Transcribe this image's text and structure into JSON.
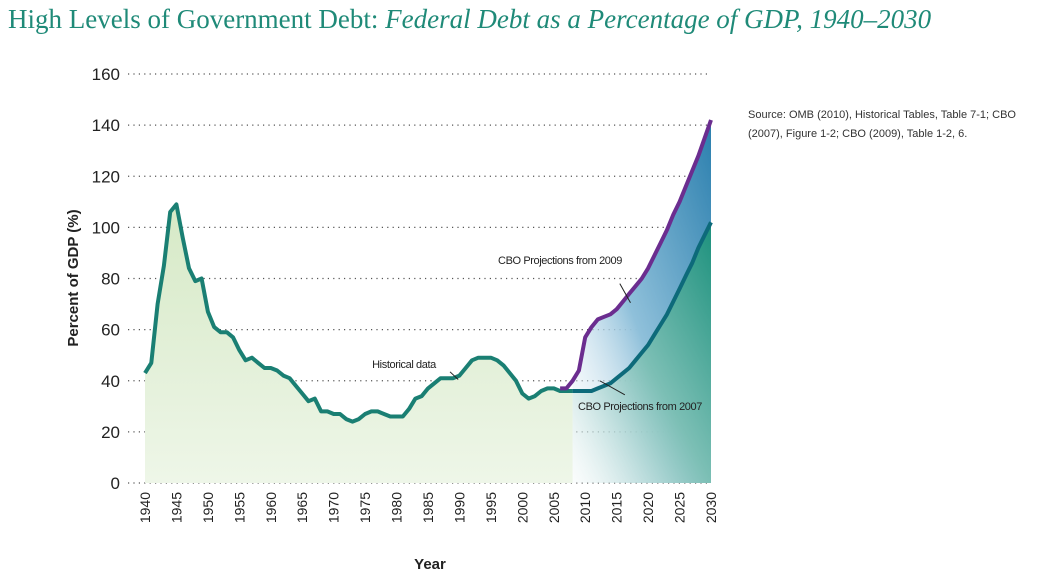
{
  "header": {
    "title_main": "High Levels of Government Debt: ",
    "title_sub": "Federal Debt as a Percentage of GDP, 1940–2030"
  },
  "source_note": "Source: OMB (2010), Historical Tables, Table 7-1; CBO (2007), Figure 1-2; CBO (2009), Table 1-2, 6.",
  "colors": {
    "historical": "#1a7f73",
    "historical_fill": "#e3f0d7",
    "cbo2009": "#6b2d8f",
    "cbo2007": "#0d6a7a",
    "fill_blue": "#3a8fb5",
    "fill_teal": "#2a9a86",
    "grid": "#555555"
  },
  "chart_data": {
    "type": "line",
    "title": "Federal Debt as a Percentage of GDP, 1940–2030",
    "xlabel": "Year",
    "ylabel": "Percent of GDP (%)",
    "xlim": [
      1940,
      2030
    ],
    "ylim": [
      0,
      160
    ],
    "x_ticks": [
      "1940",
      "1945",
      "1950",
      "1955",
      "1960",
      "1965",
      "1970",
      "1975",
      "1980",
      "1985",
      "1990",
      "1995",
      "2000",
      "2005",
      "2010",
      "2015",
      "2020",
      "2025",
      "2030"
    ],
    "y_ticks": [
      "0",
      "20",
      "40",
      "60",
      "80",
      "100",
      "120",
      "140",
      "160"
    ],
    "grid": "horizontal dotted",
    "series": [
      {
        "name": "Historical data",
        "x": [
          1940,
          1941,
          1942,
          1943,
          1944,
          1945,
          1946,
          1947,
          1948,
          1949,
          1950,
          1951,
          1952,
          1953,
          1954,
          1955,
          1956,
          1957,
          1958,
          1959,
          1960,
          1961,
          1962,
          1963,
          1964,
          1965,
          1966,
          1967,
          1968,
          1969,
          1970,
          1971,
          1972,
          1973,
          1974,
          1975,
          1976,
          1977,
          1978,
          1979,
          1980,
          1981,
          1982,
          1983,
          1984,
          1985,
          1986,
          1987,
          1988,
          1989,
          1990,
          1991,
          1992,
          1993,
          1994,
          1995,
          1996,
          1997,
          1998,
          1999,
          2000,
          2001,
          2002,
          2003,
          2004,
          2005,
          2006,
          2007,
          2008
        ],
        "y": [
          43,
          47,
          70,
          85,
          106,
          109,
          96,
          84,
          79,
          80,
          67,
          61,
          59,
          59,
          57,
          52,
          48,
          49,
          47,
          45,
          45,
          44,
          42,
          41,
          38,
          35,
          32,
          33,
          28,
          28,
          27,
          27,
          25,
          24,
          25,
          27,
          28,
          28,
          27,
          26,
          26,
          26,
          29,
          33,
          34,
          37,
          39,
          41,
          41,
          41,
          42,
          45,
          48,
          49,
          49,
          49,
          48,
          46,
          43,
          40,
          35,
          33,
          34,
          36,
          37,
          37,
          36,
          36,
          36
        ]
      },
      {
        "name": "CBO Projections from 2009",
        "x": [
          2006,
          2007,
          2008,
          2009,
          2010,
          2011,
          2012,
          2013,
          2014,
          2015,
          2016,
          2017,
          2018,
          2019,
          2020,
          2021,
          2022,
          2023,
          2024,
          2025,
          2026,
          2027,
          2028,
          2029,
          2030
        ],
        "y": [
          37,
          37,
          40,
          44,
          57,
          61,
          64,
          65,
          66,
          68,
          71,
          74,
          77,
          80,
          84,
          89,
          94,
          99,
          105,
          110,
          116,
          122,
          128,
          135,
          142
        ]
      },
      {
        "name": "CBO Projections from 2007",
        "x": [
          2008,
          2009,
          2010,
          2011,
          2012,
          2013,
          2014,
          2015,
          2016,
          2017,
          2018,
          2019,
          2020,
          2021,
          2022,
          2023,
          2024,
          2025,
          2026,
          2027,
          2028,
          2029,
          2030
        ],
        "y": [
          36,
          36,
          36,
          36,
          37,
          38,
          39,
          41,
          43,
          45,
          48,
          51,
          54,
          58,
          62,
          66,
          71,
          76,
          81,
          86,
          92,
          97,
          102
        ]
      }
    ],
    "annotations": [
      {
        "text": "Historical data",
        "x": 1990,
        "y": 44
      },
      {
        "text": "CBO Projections from 2009",
        "x": 2017,
        "y": 80
      },
      {
        "text": "CBO Projections from 2007",
        "x": 2013,
        "y": 32
      }
    ]
  }
}
